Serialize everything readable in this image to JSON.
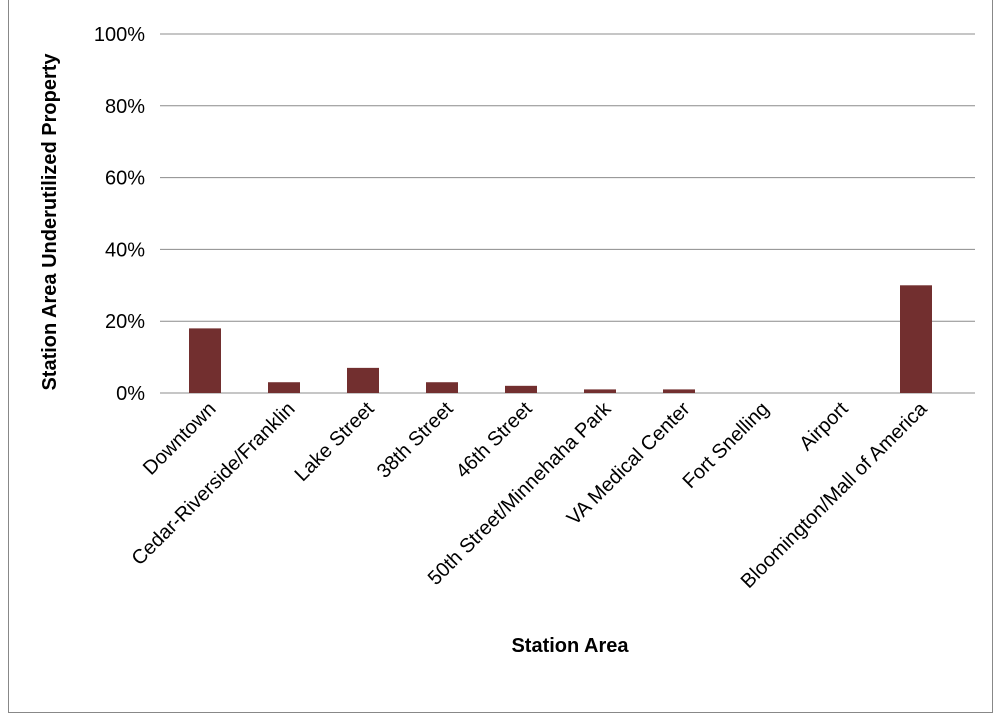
{
  "chart_data": {
    "type": "bar",
    "title": "",
    "xlabel": "Station Area",
    "ylabel": "Station Area Underutilized Property",
    "categories": [
      "Downtown",
      "Cedar-Riverside/Franklin",
      "Lake Street",
      "38th Street",
      "46th Street",
      "50th Street/Minnehaha Park",
      "VA Medical Center",
      "Fort Snelling",
      "Airport",
      "Bloomington/Mall of America"
    ],
    "values": [
      18,
      3,
      7,
      3,
      2,
      1,
      1,
      0,
      0,
      30
    ],
    "yticks": [
      "0%",
      "20%",
      "40%",
      "60%",
      "80%",
      "100%"
    ],
    "ylim": [
      0,
      100
    ],
    "grid": true,
    "legend": "none",
    "bar_color": "#722f2f",
    "grid_color": "#8c8c8c"
  }
}
